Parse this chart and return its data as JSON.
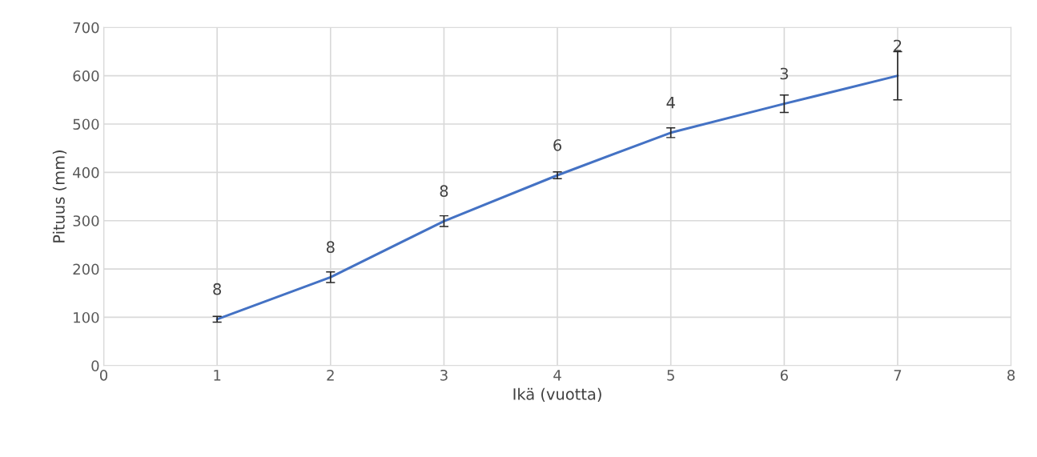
{
  "chart_data": {
    "type": "line",
    "xlabel": "Ikä (vuotta)",
    "ylabel": "Pituus (mm)",
    "x": [
      1,
      2,
      3,
      4,
      5,
      6,
      7
    ],
    "series": [
      {
        "color": "#4472c4",
        "values": [
          96,
          183,
          299,
          394,
          482,
          542,
          600
        ],
        "errors": [
          6,
          11,
          11,
          7,
          10,
          18,
          50
        ]
      }
    ],
    "xlim": [
      0,
      8
    ],
    "xticks": [
      0,
      1,
      2,
      3,
      4,
      5,
      6,
      7,
      8
    ],
    "ylim": [
      0,
      700
    ],
    "yticks": [
      0,
      100,
      200,
      300,
      400,
      500,
      600,
      700
    ],
    "grid": true,
    "marker": "none",
    "line_style": "solid",
    "annotations": [
      {
        "text": "8",
        "x": 1,
        "y": 96
      },
      {
        "text": "8",
        "x": 2,
        "y": 183
      },
      {
        "text": "8",
        "x": 3,
        "y": 299
      },
      {
        "text": "6",
        "x": 4,
        "y": 394
      },
      {
        "text": "4",
        "x": 5,
        "y": 482
      },
      {
        "text": "3",
        "x": 6,
        "y": 542
      },
      {
        "text": "2",
        "x": 7,
        "y": 600
      }
    ]
  }
}
